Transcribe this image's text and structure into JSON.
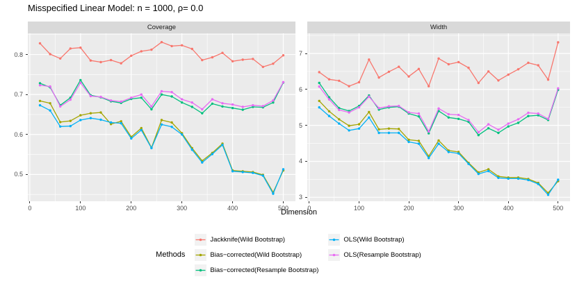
{
  "title": "Misspecified Linear Model: n = 1000, ρ= 0.0",
  "facets": [
    "Coverage",
    "Width"
  ],
  "xlabel": "Dimension",
  "colors": {
    "jackknife_wild": "#F8766D",
    "bias_corrected_wild": "#A3A500",
    "bias_corrected_resample": "#00BF7D",
    "ols_wild": "#00B0F6",
    "ols_resample": "#E76BF3",
    "panel_bg": "#ebebeb",
    "strip_bg": "#d9d9d9",
    "legend_key_bg": "#f2f2f2",
    "grid": "#ffffff"
  },
  "legend": {
    "title": "Methods",
    "items": [
      {
        "label": "Jackknife(Wild Bootstrap)",
        "color": "#F8766D"
      },
      {
        "label": "Bias−corrected(Wild Bootstrap)",
        "color": "#A3A500"
      },
      {
        "label": "Bias−corrected(Resample Bootstrap)",
        "color": "#00BF7D"
      },
      {
        "label": "OLS(Wild Bootstrap)",
        "color": "#00B0F6"
      },
      {
        "label": "OLS(Resample Bootstrap)",
        "color": "#E76BF3"
      }
    ]
  },
  "chart_data": [
    {
      "type": "line",
      "title": "Coverage",
      "xlabel": "Dimension",
      "grid": true,
      "legend_position": "bottom",
      "x": [
        20,
        40,
        60,
        80,
        100,
        120,
        140,
        160,
        180,
        200,
        220,
        240,
        260,
        280,
        300,
        320,
        340,
        360,
        380,
        400,
        420,
        440,
        460,
        480,
        500
      ],
      "xlim": [
        -4,
        524
      ],
      "ylim": [
        0.433,
        0.853
      ],
      "xtick_values": [
        0,
        100,
        200,
        300,
        400,
        500
      ],
      "xtick_labels": [
        "0",
        "100",
        "200",
        "300",
        "400",
        "500"
      ],
      "ytick_values": [
        0.5,
        0.6,
        0.7,
        0.8
      ],
      "ytick_labels": [
        "0.5",
        "0.6",
        "0.7",
        "0.8"
      ],
      "xticks_minor": [
        50,
        150,
        250,
        350,
        450
      ],
      "yticks_minor": [
        0.45,
        0.55,
        0.65,
        0.75,
        0.85
      ],
      "series": [
        {
          "name": "Jackknife(Wild Bootstrap)",
          "color": "#F8766D",
          "values": [
            0.828,
            0.801,
            0.79,
            0.815,
            0.817,
            0.785,
            0.781,
            0.786,
            0.778,
            0.797,
            0.808,
            0.812,
            0.831,
            0.821,
            0.823,
            0.814,
            0.786,
            0.793,
            0.804,
            0.783,
            0.787,
            0.789,
            0.769,
            0.777,
            0.798
          ]
        },
        {
          "name": "Bias−corrected(Wild Bootstrap)",
          "color": "#A3A500",
          "values": [
            0.684,
            0.678,
            0.631,
            0.634,
            0.648,
            0.653,
            0.655,
            0.626,
            0.633,
            0.594,
            0.616,
            0.567,
            0.636,
            0.63,
            0.603,
            0.566,
            0.534,
            0.554,
            0.577,
            0.51,
            0.508,
            0.506,
            0.499,
            0.455,
            0.51
          ]
        },
        {
          "name": "Bias−corrected(Resample Bootstrap)",
          "color": "#00BF7D",
          "values": [
            0.728,
            0.718,
            0.673,
            0.692,
            0.736,
            0.698,
            0.693,
            0.683,
            0.679,
            0.689,
            0.692,
            0.663,
            0.7,
            0.695,
            0.68,
            0.669,
            0.653,
            0.677,
            0.67,
            0.666,
            0.662,
            0.669,
            0.668,
            0.68,
            0.73
          ]
        },
        {
          "name": "OLS(Wild Bootstrap)",
          "color": "#00B0F6",
          "values": [
            0.673,
            0.66,
            0.62,
            0.621,
            0.636,
            0.641,
            0.637,
            0.63,
            0.628,
            0.59,
            0.611,
            0.566,
            0.625,
            0.619,
            0.6,
            0.562,
            0.53,
            0.551,
            0.574,
            0.508,
            0.506,
            0.504,
            0.497,
            0.452,
            0.513
          ]
        },
        {
          "name": "OLS(Resample Bootstrap)",
          "color": "#E76BF3",
          "values": [
            0.723,
            0.72,
            0.67,
            0.687,
            0.729,
            0.696,
            0.694,
            0.685,
            0.682,
            0.692,
            0.7,
            0.67,
            0.708,
            0.706,
            0.688,
            0.68,
            0.663,
            0.688,
            0.678,
            0.675,
            0.669,
            0.673,
            0.671,
            0.685,
            0.731
          ]
        }
      ]
    },
    {
      "type": "line",
      "title": "Width",
      "xlabel": "Dimension",
      "grid": true,
      "legend_position": "bottom",
      "x": [
        20,
        40,
        60,
        80,
        100,
        120,
        140,
        160,
        180,
        200,
        220,
        240,
        260,
        280,
        300,
        320,
        340,
        360,
        380,
        400,
        420,
        440,
        460,
        480,
        500
      ],
      "xlim": [
        -4,
        524
      ],
      "ylim": [
        2.89,
        7.56
      ],
      "xtick_values": [
        0,
        100,
        200,
        300,
        400,
        500
      ],
      "xtick_labels": [
        "0",
        "100",
        "200",
        "300",
        "400",
        "500"
      ],
      "ytick_values": [
        3,
        4,
        5,
        6,
        7
      ],
      "ytick_labels": [
        "3",
        "4",
        "5",
        "6",
        "7"
      ],
      "xticks_minor": [
        50,
        150,
        250,
        350,
        450
      ],
      "yticks_minor": [
        3.5,
        4.5,
        5.5,
        6.5,
        7.5
      ],
      "series": [
        {
          "name": "Jackknife(Wild Bootstrap)",
          "color": "#F8766D",
          "values": [
            6.48,
            6.28,
            6.24,
            6.09,
            6.2,
            6.83,
            6.33,
            6.49,
            6.63,
            6.36,
            6.57,
            6.09,
            6.86,
            6.7,
            6.76,
            6.6,
            6.18,
            6.5,
            6.25,
            6.41,
            6.56,
            6.74,
            6.67,
            6.27,
            7.31
          ]
        },
        {
          "name": "Bias−corrected(Wild Bootstrap)",
          "color": "#A3A500",
          "values": [
            5.68,
            5.39,
            5.17,
            4.99,
            5.03,
            5.37,
            4.89,
            4.91,
            4.9,
            4.6,
            4.57,
            4.14,
            4.58,
            4.3,
            4.26,
            3.96,
            3.69,
            3.78,
            3.58,
            3.55,
            3.55,
            3.51,
            3.4,
            3.12,
            3.45
          ]
        },
        {
          "name": "Bias−corrected(Resample Bootstrap)",
          "color": "#00BF7D",
          "values": [
            6.18,
            5.78,
            5.48,
            5.4,
            5.54,
            5.83,
            5.44,
            5.5,
            5.52,
            5.33,
            5.25,
            4.78,
            5.4,
            5.22,
            5.18,
            5.1,
            4.73,
            4.92,
            4.79,
            4.97,
            5.07,
            5.26,
            5.28,
            5.15,
            5.99
          ]
        },
        {
          "name": "OLS(Wild Bootstrap)",
          "color": "#00B0F6",
          "values": [
            5.5,
            5.26,
            5.05,
            4.86,
            4.91,
            5.22,
            4.79,
            4.79,
            4.79,
            4.54,
            4.49,
            4.09,
            4.49,
            4.26,
            4.22,
            3.93,
            3.65,
            3.73,
            3.54,
            3.52,
            3.52,
            3.48,
            3.37,
            3.07,
            3.49
          ]
        },
        {
          "name": "OLS(Resample Bootstrap)",
          "color": "#E76BF3",
          "values": [
            6.08,
            5.72,
            5.43,
            5.36,
            5.5,
            5.8,
            5.48,
            5.53,
            5.54,
            5.36,
            5.33,
            4.83,
            5.47,
            5.31,
            5.29,
            5.15,
            4.81,
            5.03,
            4.88,
            5.05,
            5.17,
            5.35,
            5.33,
            5.18,
            6.03
          ]
        }
      ]
    }
  ]
}
